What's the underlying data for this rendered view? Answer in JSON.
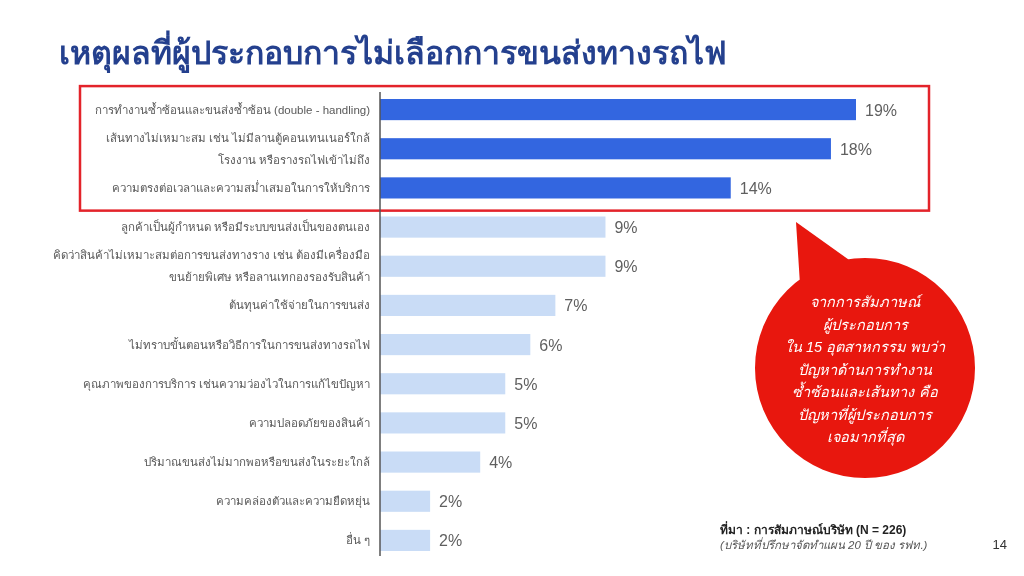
{
  "chart_data": {
    "type": "bar",
    "orientation": "horizontal",
    "title": "เหตุผลที่ผู้ประกอบการไม่เลือกการขนส่งทางรถไฟ",
    "categories": [
      "การทำงานซ้ำซ้อนและขนส่งซ้ำซ้อน (double - handling)",
      "เส้นทางไม่เหมาะสม เช่น ไม่มีลานตู้คอนเทนเนอร์ใกล้\nโรงงาน หรือรางรถไฟเข้าไม่ถึง",
      "ความตรงต่อเวลาและความสม่ำเสมอในการให้บริการ",
      "ลูกค้าเป็นผู้กำหนด หรือมีระบบขนส่งเป็นของตนเอง",
      "คิดว่าสินค้าไม่เหมาะสมต่อการขนส่งทางราง เช่น ต้องมีเครื่องมือ\nขนย้ายพิเศษ หรือลานเทกองรองรับสินค้า",
      "ต้นทุนค่าใช้จ่ายในการขนส่ง",
      "ไม่ทราบขั้นตอนหรือวิธีการในการขนส่งทางรถไฟ",
      "คุณภาพของการบริการ เช่นความว่องไวในการแก้ไขปัญหา",
      "ความปลอดภัยของสินค้า",
      "ปริมาณขนส่งไม่มากพอหรือขนส่งในระยะใกล้",
      "ความคล่องตัวและความยืดหยุ่น",
      "อื่น ๆ"
    ],
    "values": [
      19,
      18,
      14,
      9,
      9,
      7,
      6,
      5,
      5,
      4,
      2,
      2
    ],
    "colors": [
      "#3366e0",
      "#3366e0",
      "#3366e0",
      "#c9dcf6",
      "#c9dcf6",
      "#c9dcf6",
      "#c9dcf6",
      "#c9dcf6",
      "#c9dcf6",
      "#c9dcf6",
      "#c9dcf6",
      "#c9dcf6"
    ],
    "value_labels": [
      "19%",
      "18%",
      "14%",
      "9%",
      "9%",
      "7%",
      "6%",
      "5%",
      "5%",
      "4%",
      "2%",
      "2%"
    ],
    "tick_labels": "y",
    "annotations": [
      "จากการสัมภาษณ์\nผู้ประกอบการ\nใน 15 อุตสาหกรรม พบว่า\nปัญหาด้านการทำงาน\nซ้ำซ้อนและเส้นทาง คือ\nปัญหาที่ผู้ประกอบการ\nเจอมากที่สุด",
      "ที่มา : การสัมภาษณ์บริษัท (N = 226)",
      "(บริษัทที่ปรึกษาจัดทำแผน 20 ปี ของ รฟท.)",
      "14"
    ]
  }
}
